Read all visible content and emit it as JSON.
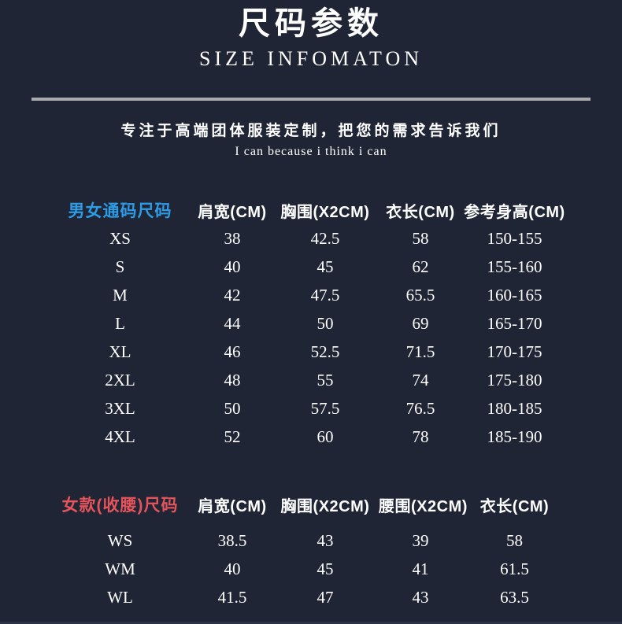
{
  "header": {
    "title_cn": "尺码参数",
    "title_en": "SIZE INFOMATON",
    "tagline_cn": "专注于高端团体服装定制，把您的需求告诉我们",
    "tagline_en": "I can because i think i can"
  },
  "colors": {
    "background": "#1f2535",
    "text": "#ffffff",
    "accent_blue": "#2e9be5",
    "accent_red": "#e4545a",
    "divider": "#a8abae"
  },
  "tables": [
    {
      "title": "男女通码尺码",
      "title_color": "#2e9be5",
      "columns": [
        "肩宽(CM)",
        "胸围(X2CM)",
        "衣长(CM)",
        "参考身高(CM)"
      ],
      "rows": [
        {
          "size": "XS",
          "values": [
            "38",
            "42.5",
            "58",
            "150-155"
          ]
        },
        {
          "size": "S",
          "values": [
            "40",
            "45",
            "62",
            "155-160"
          ]
        },
        {
          "size": "M",
          "values": [
            "42",
            "47.5",
            "65.5",
            "160-165"
          ]
        },
        {
          "size": "L",
          "values": [
            "44",
            "50",
            "69",
            "165-170"
          ]
        },
        {
          "size": "XL",
          "values": [
            "46",
            "52.5",
            "71.5",
            "170-175"
          ]
        },
        {
          "size": "2XL",
          "values": [
            "48",
            "55",
            "74",
            "175-180"
          ]
        },
        {
          "size": "3XL",
          "values": [
            "50",
            "57.5",
            "76.5",
            "180-185"
          ]
        },
        {
          "size": "4XL",
          "values": [
            "52",
            "60",
            "78",
            "185-190"
          ]
        }
      ]
    },
    {
      "title": "女款(收腰)尺码",
      "title_color": "#e4545a",
      "columns": [
        "肩宽(CM)",
        "胸围(X2CM)",
        "腰围(X2CM)",
        "衣长(CM)"
      ],
      "rows": [
        {
          "size": "WS",
          "values": [
            "38.5",
            "43",
            "39",
            "58"
          ]
        },
        {
          "size": "WM",
          "values": [
            "40",
            "45",
            "41",
            "61.5"
          ]
        },
        {
          "size": "WL",
          "values": [
            "41.5",
            "47",
            "43",
            "63.5"
          ]
        }
      ]
    }
  ]
}
